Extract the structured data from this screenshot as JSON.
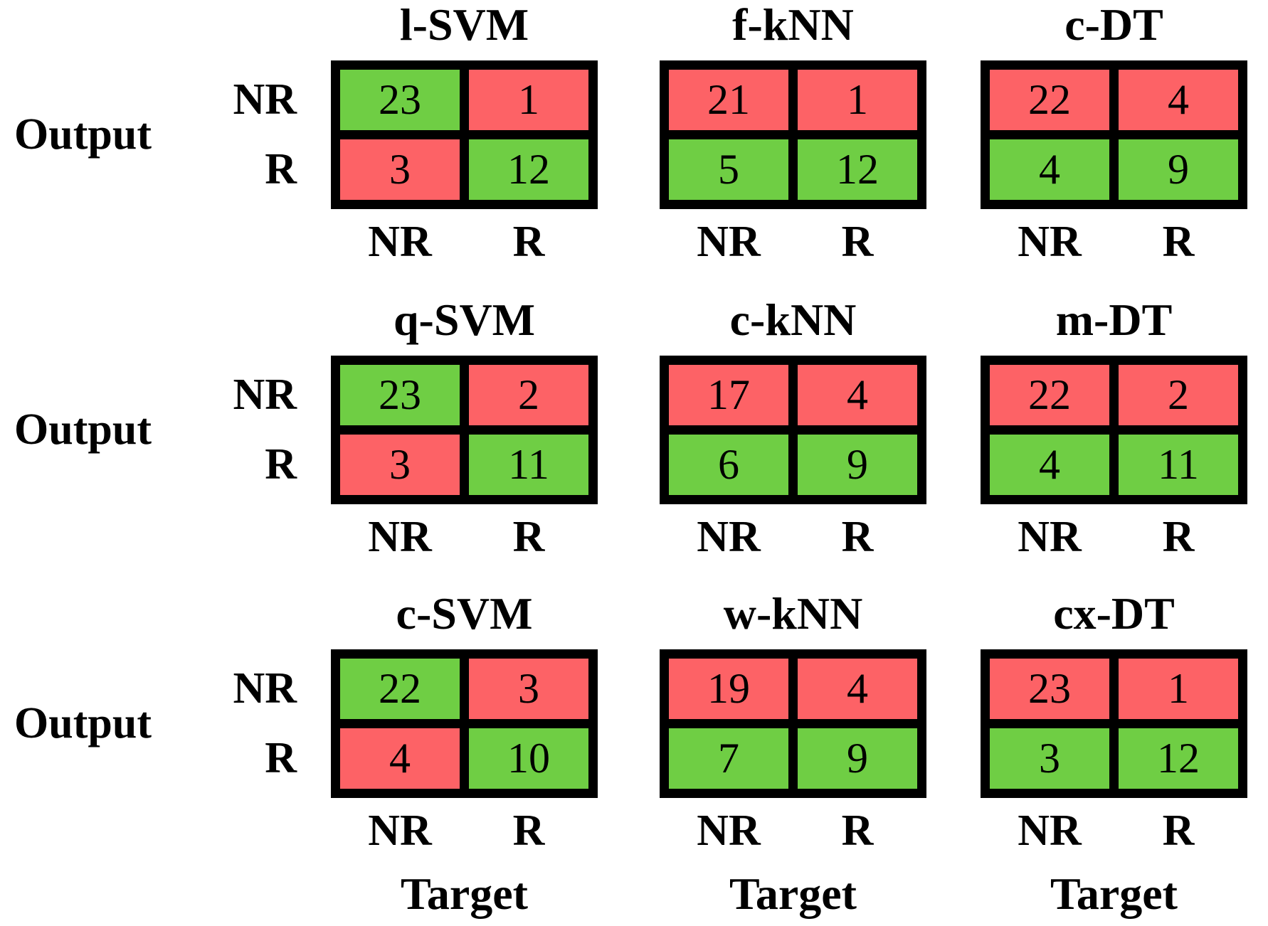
{
  "figure": {
    "output_label": "Output",
    "target_label": "Target"
  },
  "colors": {
    "green": "#6FCE44",
    "red": "#FD6266",
    "border": "#000000",
    "text": "#000000",
    "background": "#FFFFFF"
  },
  "chart_data": [
    {
      "type": "heatmap",
      "title": "l-SVM",
      "ylabel": "Output",
      "xlabel": "Target",
      "rows": [
        "NR",
        "R"
      ],
      "cols": [
        "NR",
        "R"
      ],
      "values": [
        [
          23,
          1
        ],
        [
          3,
          12
        ]
      ],
      "cell_colors": [
        [
          "green",
          "red"
        ],
        [
          "red",
          "green"
        ]
      ]
    },
    {
      "type": "heatmap",
      "title": "f-kNN",
      "ylabel": "Output",
      "xlabel": "Target",
      "rows": [
        "NR",
        "R"
      ],
      "cols": [
        "NR",
        "R"
      ],
      "values": [
        [
          21,
          1
        ],
        [
          5,
          12
        ]
      ],
      "cell_colors": [
        [
          "red",
          "red"
        ],
        [
          "green",
          "green"
        ]
      ]
    },
    {
      "type": "heatmap",
      "title": "c-DT",
      "ylabel": "Output",
      "xlabel": "Target",
      "rows": [
        "NR",
        "R"
      ],
      "cols": [
        "NR",
        "R"
      ],
      "values": [
        [
          22,
          4
        ],
        [
          4,
          9
        ]
      ],
      "cell_colors": [
        [
          "red",
          "red"
        ],
        [
          "green",
          "green"
        ]
      ]
    },
    {
      "type": "heatmap",
      "title": "q-SVM",
      "ylabel": "Output",
      "xlabel": "Target",
      "rows": [
        "NR",
        "R"
      ],
      "cols": [
        "NR",
        "R"
      ],
      "values": [
        [
          23,
          2
        ],
        [
          3,
          11
        ]
      ],
      "cell_colors": [
        [
          "green",
          "red"
        ],
        [
          "red",
          "green"
        ]
      ]
    },
    {
      "type": "heatmap",
      "title": "c-kNN",
      "ylabel": "Output",
      "xlabel": "Target",
      "rows": [
        "NR",
        "R"
      ],
      "cols": [
        "NR",
        "R"
      ],
      "values": [
        [
          17,
          4
        ],
        [
          6,
          9
        ]
      ],
      "cell_colors": [
        [
          "red",
          "red"
        ],
        [
          "green",
          "green"
        ]
      ]
    },
    {
      "type": "heatmap",
      "title": "m-DT",
      "ylabel": "Output",
      "xlabel": "Target",
      "rows": [
        "NR",
        "R"
      ],
      "cols": [
        "NR",
        "R"
      ],
      "values": [
        [
          22,
          2
        ],
        [
          4,
          11
        ]
      ],
      "cell_colors": [
        [
          "red",
          "red"
        ],
        [
          "green",
          "green"
        ]
      ]
    },
    {
      "type": "heatmap",
      "title": "c-SVM",
      "ylabel": "Output",
      "xlabel": "Target",
      "rows": [
        "NR",
        "R"
      ],
      "cols": [
        "NR",
        "R"
      ],
      "values": [
        [
          22,
          3
        ],
        [
          4,
          10
        ]
      ],
      "cell_colors": [
        [
          "green",
          "red"
        ],
        [
          "red",
          "green"
        ]
      ]
    },
    {
      "type": "heatmap",
      "title": "w-kNN",
      "ylabel": "Output",
      "xlabel": "Target",
      "rows": [
        "NR",
        "R"
      ],
      "cols": [
        "NR",
        "R"
      ],
      "values": [
        [
          19,
          4
        ],
        [
          7,
          9
        ]
      ],
      "cell_colors": [
        [
          "red",
          "red"
        ],
        [
          "green",
          "green"
        ]
      ]
    },
    {
      "type": "heatmap",
      "title": "cx-DT",
      "ylabel": "Output",
      "xlabel": "Target",
      "rows": [
        "NR",
        "R"
      ],
      "cols": [
        "NR",
        "R"
      ],
      "values": [
        [
          23,
          1
        ],
        [
          3,
          12
        ]
      ],
      "cell_colors": [
        [
          "red",
          "red"
        ],
        [
          "green",
          "green"
        ]
      ]
    }
  ]
}
